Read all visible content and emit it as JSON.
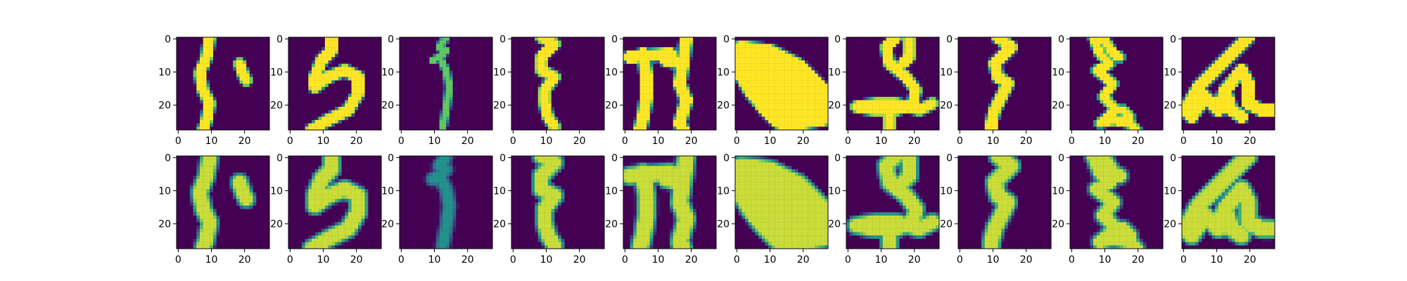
{
  "figure": {
    "background": "#ffffff"
  },
  "chart_data": {
    "type": "heatmap",
    "colormap": "viridis",
    "colors": {
      "low": "#440154",
      "high": "#fde725"
    },
    "grid": false,
    "image_size": [
      28,
      28
    ],
    "rows": [
      {
        "panels": 10
      },
      {
        "panels": 10
      }
    ],
    "xlim": [
      -0.5,
      27.5
    ],
    "ylim": [
      27.5,
      -0.5
    ],
    "xticks": [
      0,
      10,
      20
    ],
    "yticks": [
      0,
      10,
      20
    ],
    "xtick_labels": [
      "0",
      "10",
      "20"
    ],
    "ytick_labels": [
      "0",
      "10",
      "20"
    ],
    "shapes": [
      "right strokes: long S-curve near x=9, short mark near x=20",
      "looping hook shape",
      "thin vertical curve with small hook at top",
      "zigzag stroke",
      "two vertical strokes with crossbar",
      "large filled blob",
      "winding stroke with underline",
      "zigzag stroke",
      "scribbled stroke",
      "angular loop"
    ]
  }
}
